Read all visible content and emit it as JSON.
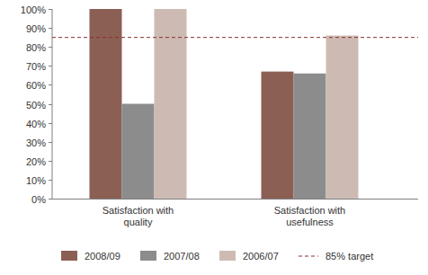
{
  "chart_data": {
    "type": "bar",
    "categories": [
      "Satisfaction with quality",
      "Satisfaction with usefulness"
    ],
    "series": [
      {
        "name": "2008/09",
        "color": "#8c5f54",
        "values": [
          100,
          67
        ]
      },
      {
        "name": "2007/08",
        "color": "#8c8c8c",
        "values": [
          50,
          66
        ]
      },
      {
        "name": "2006/07",
        "color": "#cdbbb3",
        "values": [
          100,
          86
        ]
      }
    ],
    "reference_lines": [
      {
        "value": 85,
        "label": "85% target",
        "color": "#8b2f2f",
        "line_style": "dashed"
      }
    ],
    "ylim": [
      0,
      100
    ],
    "yticks": [
      {
        "value": 0,
        "label": "0%"
      },
      {
        "value": 10,
        "label": "10%"
      },
      {
        "value": 20,
        "label": "20%"
      },
      {
        "value": 30,
        "label": "30%"
      },
      {
        "value": 40,
        "label": "40%"
      },
      {
        "value": 50,
        "label": "50%"
      },
      {
        "value": 60,
        "label": "60%"
      },
      {
        "value": 70,
        "label": "70%"
      },
      {
        "value": 80,
        "label": "80%"
      },
      {
        "value": 90,
        "label": "90%"
      },
      {
        "value": 100,
        "label": "100%"
      }
    ],
    "grid": false,
    "legend": "bottom"
  }
}
